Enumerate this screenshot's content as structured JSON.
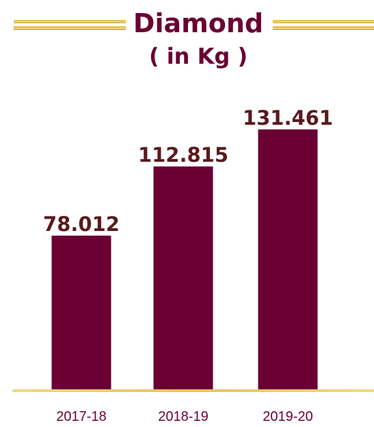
{
  "chart_data": {
    "type": "bar",
    "title": "Diamond",
    "subtitle": "( in Kg )",
    "categories": [
      "2017-18",
      "2018-19",
      "2019-20"
    ],
    "values": [
      78.012,
      112.815,
      131.461
    ],
    "value_labels": [
      "78.012",
      "112.815",
      "131.461"
    ],
    "xlabel": "",
    "ylabel": "",
    "ylim": [
      0,
      140
    ],
    "grid": false,
    "legend": "none"
  },
  "colors": {
    "bar": "#6a0033",
    "title": "#6a0033",
    "value_label": "#5a1a1e",
    "gold_light": "#fbe9a6",
    "gold_mid": "#e2b23e",
    "gold_dark": "#b88a25"
  }
}
